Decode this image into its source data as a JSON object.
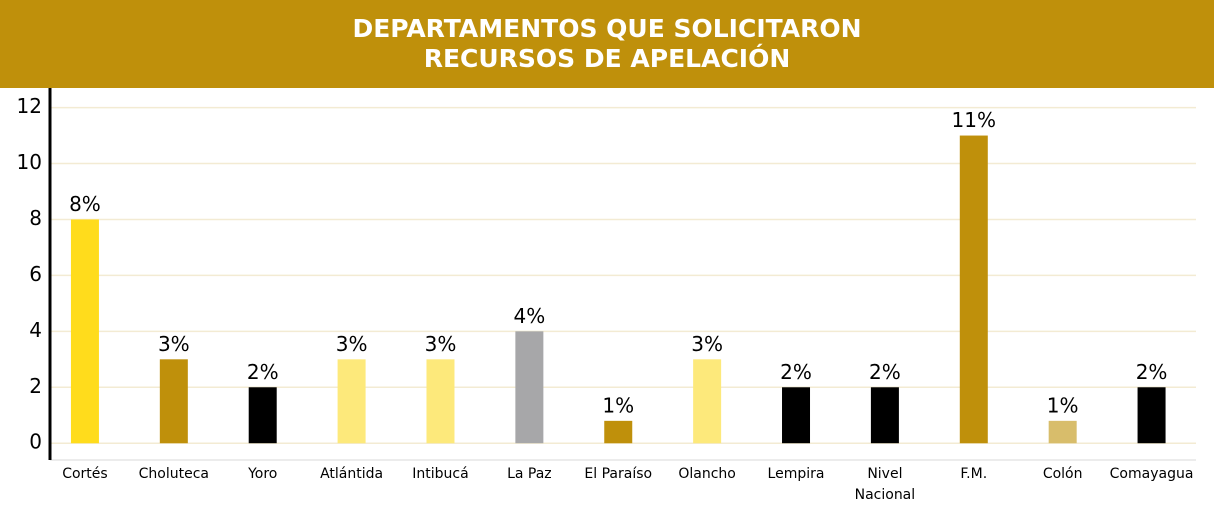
{
  "chart_data": {
    "type": "bar",
    "title": [
      "DEPARTAMENTOS QUE SOLICITARON",
      "RECURSOS DE APELACIÓN"
    ],
    "categories": [
      "Cortés",
      "Choluteca",
      "Yoro",
      "Atlántida",
      "Intibucá",
      "La Paz",
      "El Paraíso",
      "Olancho",
      "Lempira",
      "Nivel Nacional",
      "F.M.",
      "Colón",
      "Comayagua"
    ],
    "values": [
      8,
      3,
      2,
      3,
      3,
      4,
      0.8,
      3,
      2,
      2,
      11,
      0.8,
      2
    ],
    "value_labels": [
      "8%",
      "3%",
      "2%",
      "3%",
      "3%",
      "4%",
      "1%",
      "3%",
      "2%",
      "2%",
      "11%",
      "1%",
      "2%"
    ],
    "colors": [
      "#ffdc1c",
      "#bf900b",
      "#000000",
      "#fde97b",
      "#fde97b",
      "#a7a7a9",
      "#bf900b",
      "#fde97b",
      "#000000",
      "#000000",
      "#bf900b",
      "#d8bd6b",
      "#000000"
    ],
    "ylim": [
      -0.6,
      12.7
    ],
    "yticks": [
      0,
      2,
      4,
      6,
      8,
      10,
      12
    ],
    "grid": true
  }
}
